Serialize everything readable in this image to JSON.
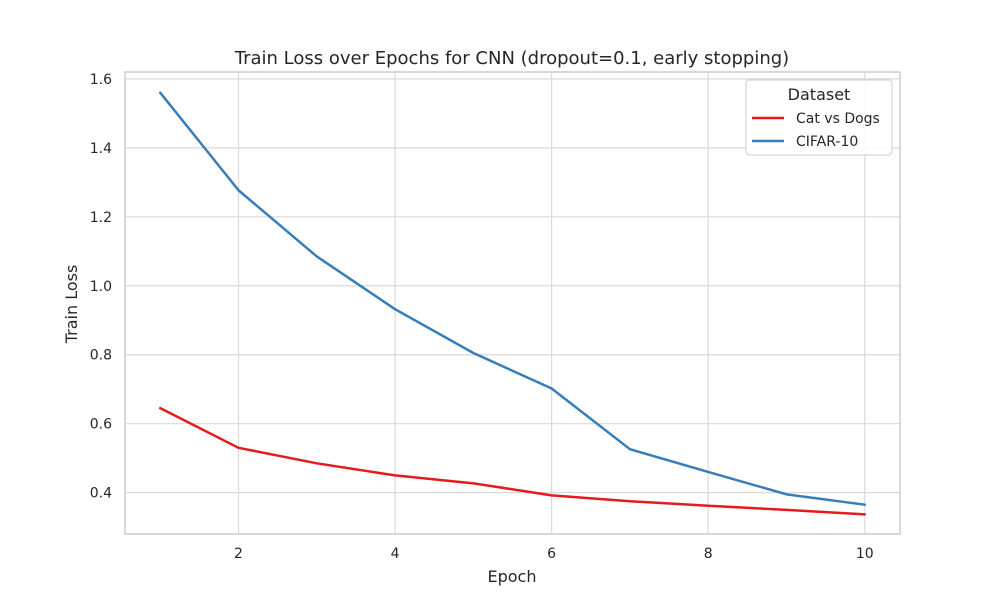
{
  "chart_data": {
    "type": "line",
    "title": "Train Loss over Epochs for CNN (dropout=0.1, early stopping)",
    "xlabel": "Epoch",
    "ylabel": "Train Loss",
    "xlim": [
      0.55,
      10.45
    ],
    "ylim": [
      0.28,
      1.62
    ],
    "xticks": [
      2,
      4,
      6,
      8,
      10
    ],
    "yticks": [
      0.4,
      0.6,
      0.8,
      1.0,
      1.2,
      1.4,
      1.6
    ],
    "ytick_labels": [
      "0.4",
      "0.6",
      "0.8",
      "1.0",
      "1.2",
      "1.4",
      "1.6"
    ],
    "grid": true,
    "legend": {
      "title": "Dataset",
      "position": "top-right"
    },
    "x": [
      1,
      2,
      3,
      4,
      5,
      6,
      7,
      8,
      9,
      10
    ],
    "series": [
      {
        "name": "Cat vs Dogs",
        "color": "#e41a1c",
        "values": [
          0.645,
          0.53,
          0.485,
          0.45,
          0.427,
          0.392,
          0.375,
          0.362,
          0.35,
          0.337
        ]
      },
      {
        "name": "CIFAR-10",
        "color": "#377eb8",
        "values": [
          1.56,
          1.277,
          1.085,
          0.932,
          0.805,
          0.702,
          0.526,
          0.46,
          0.395,
          0.365
        ]
      }
    ]
  }
}
